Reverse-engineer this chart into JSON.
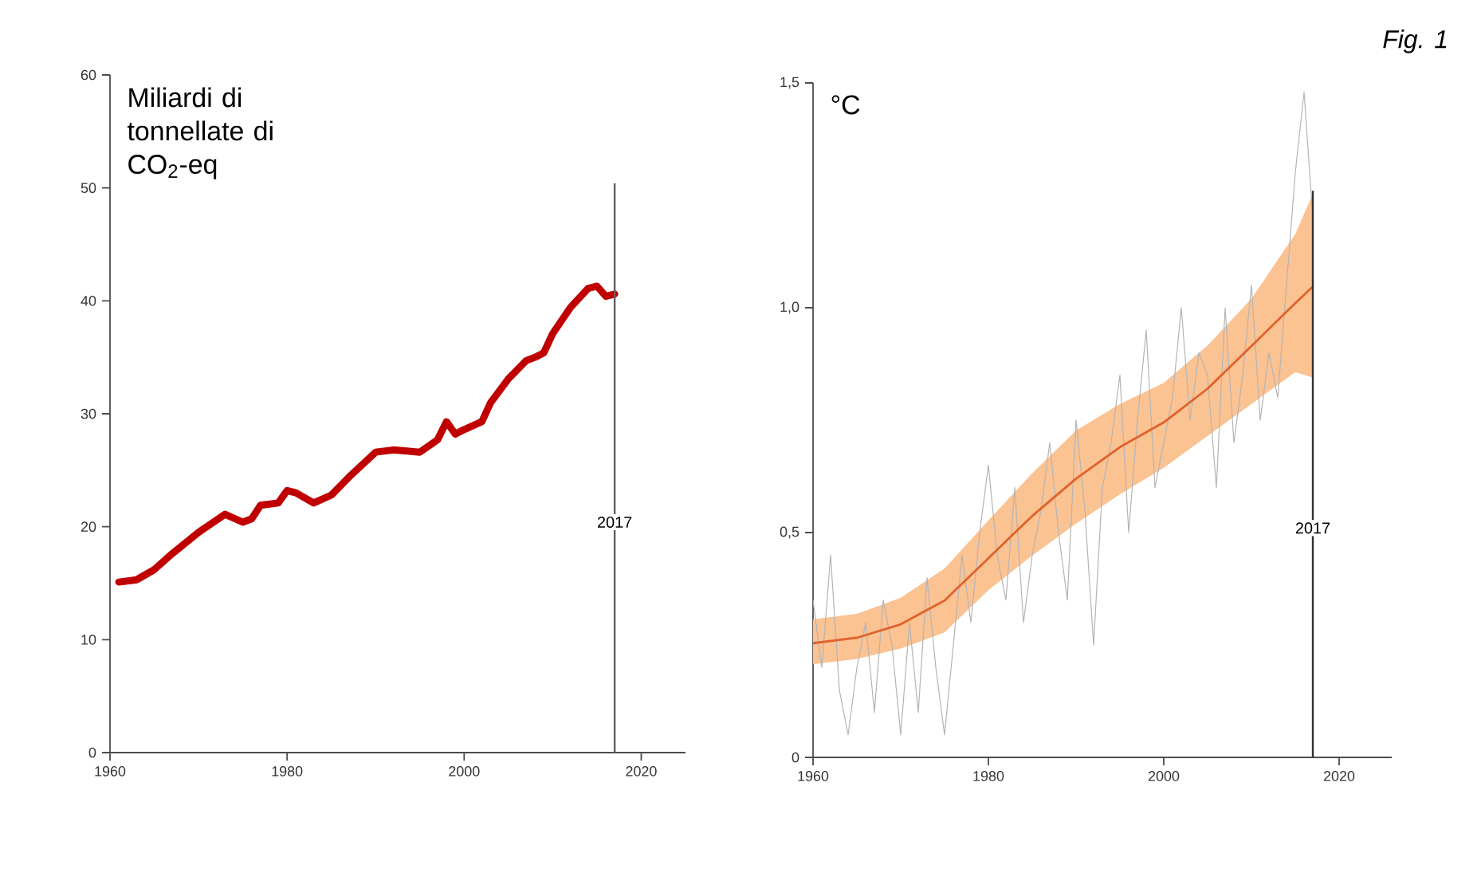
{
  "chart_data": [
    {
      "type": "line",
      "ylabel": "Miliardi di tonnellate di CO$_{2}$-eq",
      "x": [
        1961,
        1963,
        1965,
        1967,
        1970,
        1973,
        1975,
        1976,
        1977,
        1979,
        1980,
        1981,
        1983,
        1985,
        1987,
        1990,
        1992,
        1995,
        1997,
        1998,
        1999,
        2000,
        2002,
        2003,
        2005,
        2007,
        2008,
        2009,
        2010,
        2012,
        2014,
        2015,
        2016,
        2017
      ],
      "values": [
        15.1,
        15.3,
        16.2,
        17.6,
        19.5,
        21.1,
        20.4,
        20.7,
        21.9,
        22.1,
        23.2,
        23.0,
        22.1,
        22.8,
        24.4,
        26.6,
        26.8,
        26.6,
        27.7,
        29.3,
        28.2,
        28.6,
        29.3,
        31.0,
        33.1,
        34.7,
        35.0,
        35.4,
        37.1,
        39.4,
        41.1,
        41.3,
        40.4,
        40.6
      ],
      "color": "#c00000",
      "xlim": [
        1960,
        2025
      ],
      "ylim": [
        0,
        60
      ],
      "xticks": [
        1960,
        1980,
        2000,
        2020
      ],
      "yticks": [
        0,
        10,
        20,
        30,
        40,
        50,
        60
      ],
      "ref_lines": [
        {
          "axis": "x",
          "value": 2017,
          "label": "2017",
          "color": "#606060"
        }
      ]
    },
    {
      "type": "line",
      "ylabel": "°C",
      "annotations": [
        "Fig. 1"
      ],
      "series": [
        {
          "type": "line",
          "color": "#b4b4b4",
          "x": [
            1960,
            1961,
            1962,
            1963,
            1964,
            1965,
            1966,
            1967,
            1968,
            1969,
            1970,
            1971,
            1972,
            1973,
            1974,
            1975,
            1976,
            1977,
            1978,
            1979,
            1980,
            1981,
            1982,
            1983,
            1984,
            1985,
            1986,
            1987,
            1988,
            1989,
            1990,
            1991,
            1992,
            1993,
            1994,
            1995,
            1996,
            1997,
            1998,
            1999,
            2000,
            2001,
            2002,
            2003,
            2004,
            2005,
            2006,
            2007,
            2008,
            2009,
            2010,
            2011,
            2012,
            2013,
            2014,
            2015,
            2016,
            2017
          ],
          "values": [
            0.35,
            0.2,
            0.45,
            0.15,
            0.05,
            0.2,
            0.3,
            0.1,
            0.35,
            0.25,
            0.05,
            0.3,
            0.1,
            0.4,
            0.2,
            0.05,
            0.25,
            0.45,
            0.3,
            0.5,
            0.65,
            0.45,
            0.35,
            0.6,
            0.3,
            0.45,
            0.55,
            0.7,
            0.5,
            0.35,
            0.75,
            0.55,
            0.25,
            0.6,
            0.7,
            0.85,
            0.5,
            0.75,
            0.95,
            0.6,
            0.7,
            0.8,
            1.0,
            0.75,
            0.9,
            0.85,
            0.6,
            1.0,
            0.7,
            0.85,
            1.05,
            0.75,
            0.9,
            0.8,
            1.05,
            1.3,
            1.48,
            1.2
          ]
        },
        {
          "type": "line",
          "color": "#e0622a",
          "x": [
            1960,
            1965,
            1970,
            1975,
            1980,
            1985,
            1990,
            1995,
            2000,
            2005,
            2010,
            2015,
            2017
          ],
          "values": [
            0.254,
            0.266,
            0.296,
            0.349,
            0.443,
            0.537,
            0.62,
            0.69,
            0.745,
            0.82,
            0.915,
            1.01,
            1.047
          ],
          "upper": [
            0.307,
            0.319,
            0.355,
            0.42,
            0.527,
            0.632,
            0.727,
            0.786,
            0.833,
            0.916,
            1.02,
            1.164,
            1.253
          ],
          "lower": [
            0.207,
            0.219,
            0.242,
            0.278,
            0.372,
            0.449,
            0.52,
            0.585,
            0.644,
            0.715,
            0.786,
            0.857,
            0.845
          ]
        }
      ],
      "xlim": [
        1960,
        2026
      ],
      "ylim": [
        0,
        1.5
      ],
      "xticks": [
        1960,
        1980,
        2000,
        2020
      ],
      "yticks": [
        0,
        {
          "value": 0.5,
          "label": "0,5"
        },
        {
          "value": 1.0,
          "label": "1,0"
        },
        {
          "value": 1.5,
          "label": "1,5"
        }
      ],
      "ref_lines": [
        {
          "axis": "x",
          "value": 2017,
          "label": "2017",
          "color": "#303030"
        }
      ]
    }
  ]
}
